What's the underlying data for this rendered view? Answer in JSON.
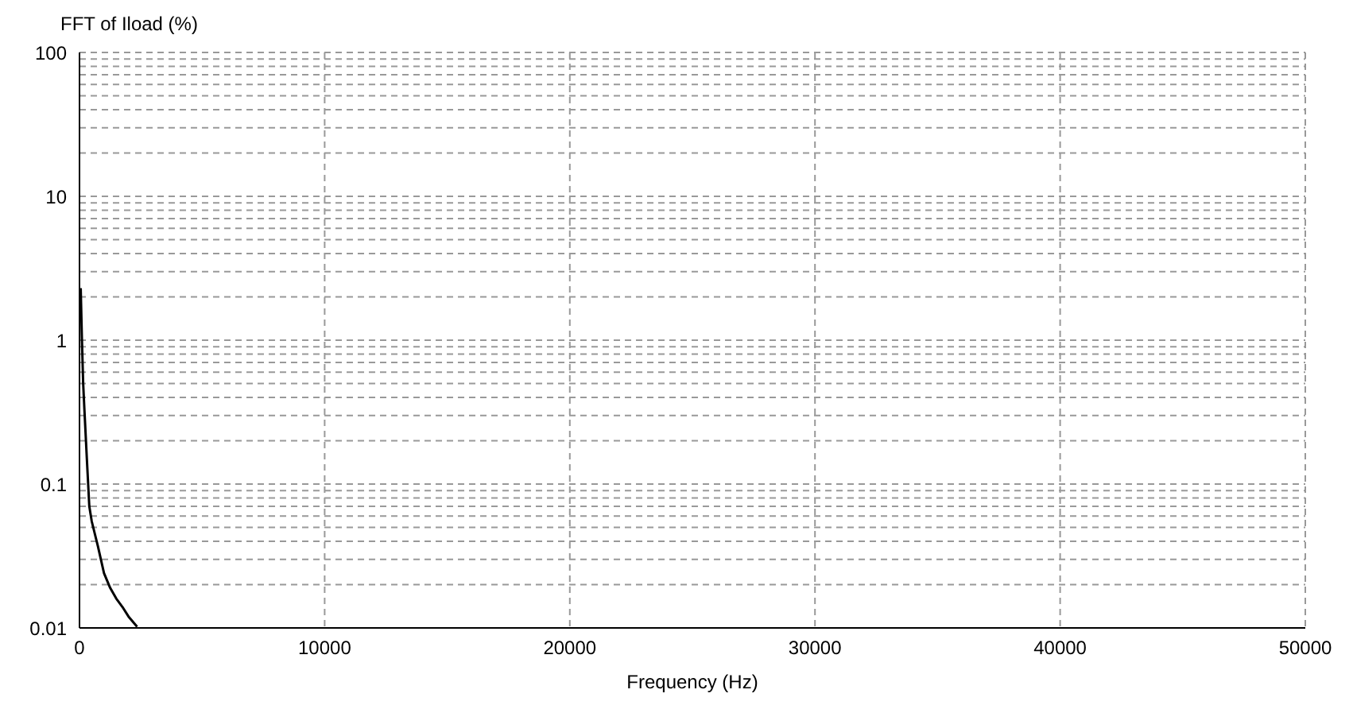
{
  "chart_data": {
    "type": "line",
    "xlabel": "Frequency (Hz)",
    "ylabel": "FFT of Iload (%)",
    "log": "y",
    "grid": true,
    "legend": false,
    "marker": "none",
    "line_style": "solid",
    "xlim": [
      0,
      50000
    ],
    "xticks": [
      0,
      10000,
      20000,
      30000,
      40000,
      50000
    ],
    "ylim": [
      0.01,
      100
    ],
    "yticks": [
      0.01,
      {
        "value": 0.02,
        "label": null
      },
      {
        "value": 0.03,
        "label": null
      },
      {
        "value": 0.04,
        "label": null
      },
      {
        "value": 0.05,
        "label": null
      },
      {
        "value": 0.06,
        "label": null
      },
      {
        "value": 0.07,
        "label": null
      },
      {
        "value": 0.08,
        "label": null
      },
      {
        "value": 0.09,
        "label": null
      },
      0.1,
      {
        "value": 0.2,
        "label": null
      },
      {
        "value": 0.3,
        "label": null
      },
      {
        "value": 0.4,
        "label": null
      },
      {
        "value": 0.5,
        "label": null
      },
      {
        "value": 0.6,
        "label": null
      },
      {
        "value": 0.7,
        "label": null
      },
      {
        "value": 0.8,
        "label": null
      },
      {
        "value": 0.9,
        "label": null
      },
      1,
      {
        "value": 2,
        "label": null
      },
      {
        "value": 3,
        "label": null
      },
      {
        "value": 4,
        "label": null
      },
      {
        "value": 5,
        "label": null
      },
      {
        "value": 6,
        "label": null
      },
      {
        "value": 7,
        "label": null
      },
      {
        "value": 8,
        "label": null
      },
      {
        "value": 9,
        "label": null
      },
      10,
      {
        "value": 20,
        "label": null
      },
      {
        "value": 30,
        "label": null
      },
      {
        "value": 40,
        "label": null
      },
      {
        "value": 50,
        "label": null
      },
      {
        "value": 60,
        "label": null
      },
      {
        "value": 70,
        "label": null
      },
      {
        "value": 80,
        "label": null
      },
      {
        "value": 90,
        "label": null
      },
      100
    ],
    "x": [
      50,
      100,
      150,
      200,
      300,
      400,
      500,
      750,
      1000,
      1250,
      1500,
      1750,
      2000,
      2350
    ],
    "series": [
      {
        "color": "#000000",
        "values": [
          2.3,
          1.0,
          0.5,
          0.33,
          0.15,
          0.07,
          0.055,
          0.037,
          0.024,
          0.019,
          0.016,
          0.014,
          0.012,
          0.0102
        ]
      }
    ]
  }
}
